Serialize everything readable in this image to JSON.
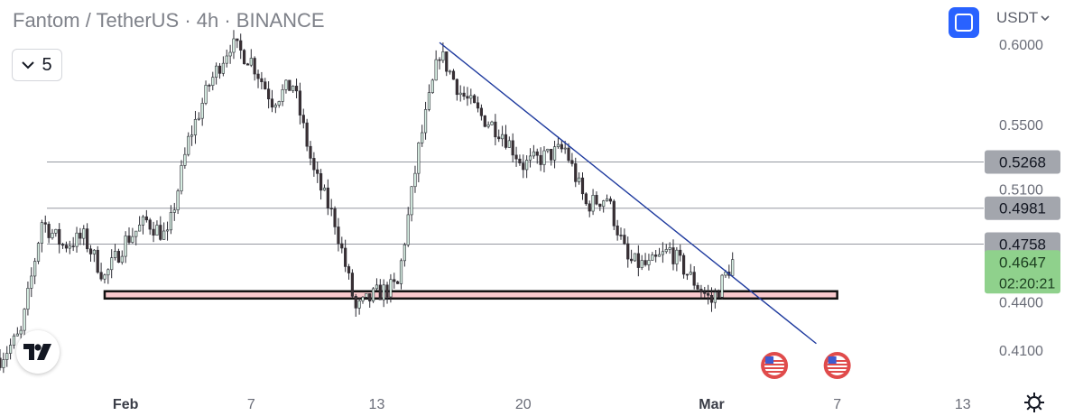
{
  "header": {
    "title": "Fantom / TetherUS · 4h · BINANCE",
    "indicator_count": "5",
    "currency": "USDT"
  },
  "icons": {
    "collapse": "chevron-down-icon",
    "fullscreen": "fullscreen-icon",
    "currency_menu": "chevron-down-icon",
    "logo": "tradingview-logo-icon",
    "settings": "gear-icon",
    "events": "us-flag-icon"
  },
  "colors": {
    "up": "#26a69a",
    "down": "#ef5350",
    "candle_dark": "#2b2b33",
    "trendline": "#1e3a9e",
    "support_zone_fill": "#f8c8cc",
    "support_zone_border": "#111111",
    "level_line": "#9598a1",
    "current_price_bg": "#8fd18c",
    "level_label_bg": "#a3a6ad"
  },
  "chart_data": {
    "type": "candlestick",
    "title": "Fantom / TetherUS · 4h · BINANCE",
    "price_axis": {
      "ticks": [
        0.6,
        0.55,
        0.51,
        0.44,
        0.41
      ],
      "tick_labels": [
        "0.6000",
        "0.5500",
        "0.5100",
        "0.4400",
        "0.4100"
      ],
      "range": [
        0.392,
        0.605
      ]
    },
    "time_axis": {
      "ticks": [
        "Feb",
        "7",
        "13",
        "20",
        "Mar",
        "7",
        "13"
      ],
      "tick_dates": [
        "2023-02-01",
        "2023-02-07",
        "2023-02-13",
        "2023-02-20",
        "2023-03-01",
        "2023-03-07",
        "2023-03-13"
      ],
      "range": [
        "2023-01-26",
        "2023-03-14"
      ]
    },
    "horizontal_levels": [
      {
        "price": 0.5268,
        "label": "0.5268"
      },
      {
        "price": 0.4981,
        "label": "0.4981"
      },
      {
        "price": 0.4758,
        "label": "0.4758"
      }
    ],
    "current_price": {
      "price": 0.4647,
      "label": "0.4647",
      "countdown": "02:20:21"
    },
    "support_zone": {
      "low": 0.442,
      "high": 0.4465,
      "start": "2023-01-31",
      "end": "2023-03-07"
    },
    "trendline": {
      "from": {
        "date": "2023-02-16",
        "price": 0.601
      },
      "to": {
        "date": "2023-03-06",
        "price": 0.414
      }
    },
    "event_markers": [
      "2023-03-04",
      "2023-03-07"
    ],
    "price_path": [
      [
        "2023-01-26",
        0.405
      ],
      [
        "2023-01-27",
        0.42
      ],
      [
        "2023-01-28",
        0.49
      ],
      [
        "2023-01-29",
        0.475
      ],
      [
        "2023-01-30",
        0.48
      ],
      [
        "2023-01-31",
        0.455
      ],
      [
        "2023-02-01",
        0.478
      ],
      [
        "2023-02-02",
        0.49
      ],
      [
        "2023-02-03",
        0.48
      ],
      [
        "2023-02-04",
        0.54
      ],
      [
        "2023-02-05",
        0.575
      ],
      [
        "2023-02-06",
        0.6
      ],
      [
        "2023-02-07",
        0.59
      ],
      [
        "2023-02-08",
        0.565
      ],
      [
        "2023-02-09",
        0.575
      ],
      [
        "2023-02-10",
        0.52
      ],
      [
        "2023-02-11",
        0.49
      ],
      [
        "2023-02-12",
        0.435
      ],
      [
        "2023-02-13",
        0.445
      ],
      [
        "2023-02-14",
        0.45
      ],
      [
        "2023-02-15",
        0.535
      ],
      [
        "2023-02-16",
        0.595
      ],
      [
        "2023-02-17",
        0.57
      ],
      [
        "2023-02-18",
        0.555
      ],
      [
        "2023-02-19",
        0.545
      ],
      [
        "2023-02-20",
        0.525
      ],
      [
        "2023-02-21",
        0.53
      ],
      [
        "2023-02-22",
        0.535
      ],
      [
        "2023-02-23",
        0.5
      ],
      [
        "2023-02-24",
        0.505
      ],
      [
        "2023-02-25",
        0.465
      ],
      [
        "2023-02-26",
        0.462
      ],
      [
        "2023-02-27",
        0.472
      ],
      [
        "2023-02-28",
        0.455
      ],
      [
        "2023-03-01",
        0.44
      ],
      [
        "2023-03-02",
        0.4647
      ]
    ]
  }
}
